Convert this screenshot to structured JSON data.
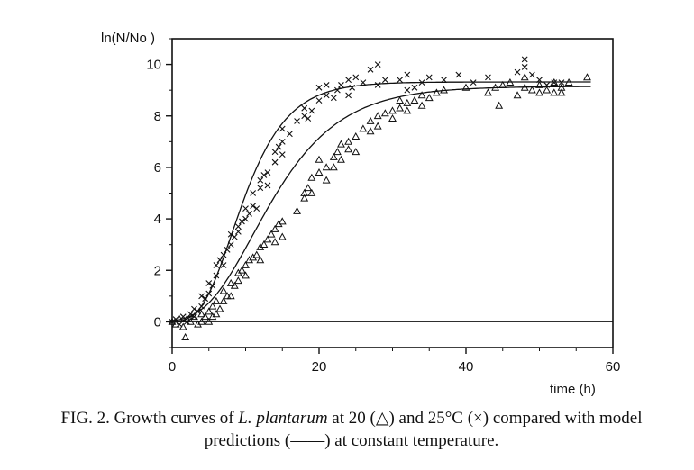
{
  "chart_data": {
    "type": "scatter",
    "xlabel": "time (h)",
    "ylabel": "ln(N/No )",
    "xlim": [
      0,
      60
    ],
    "ylim": [
      -1,
      11
    ],
    "xticks": [
      0,
      20,
      40,
      60
    ],
    "yticks": [
      0,
      2,
      4,
      6,
      8,
      10
    ],
    "grid": false,
    "series": [
      {
        "name": "20°C",
        "marker": "triangle",
        "points": [
          [
            0,
            0
          ],
          [
            0.5,
            -0.1
          ],
          [
            1,
            0.1
          ],
          [
            1.5,
            -0.2
          ],
          [
            1.8,
            -0.6
          ],
          [
            2,
            0.1
          ],
          [
            2.5,
            0
          ],
          [
            3,
            0.2
          ],
          [
            3.5,
            -0.1
          ],
          [
            4,
            0.3
          ],
          [
            4,
            0
          ],
          [
            4.5,
            0.2
          ],
          [
            5,
            0.4
          ],
          [
            5,
            0
          ],
          [
            5.5,
            0.6
          ],
          [
            5.5,
            0.2
          ],
          [
            6,
            0.8
          ],
          [
            6,
            0.3
          ],
          [
            6.5,
            0.5
          ],
          [
            7,
            1.2
          ],
          [
            7,
            0.8
          ],
          [
            7.5,
            1.0
          ],
          [
            8,
            1.5
          ],
          [
            8,
            1.0
          ],
          [
            8.5,
            1.4
          ],
          [
            9,
            1.6
          ],
          [
            9,
            1.9
          ],
          [
            9.5,
            2.0
          ],
          [
            10,
            1.8
          ],
          [
            10,
            2.2
          ],
          [
            10.5,
            2.4
          ],
          [
            11,
            2.5
          ],
          [
            11.5,
            2.6
          ],
          [
            12,
            2.9
          ],
          [
            12,
            2.4
          ],
          [
            12.5,
            3.0
          ],
          [
            13,
            3.2
          ],
          [
            13.5,
            3.4
          ],
          [
            14,
            3.6
          ],
          [
            14,
            3.1
          ],
          [
            14.5,
            3.8
          ],
          [
            15,
            3.9
          ],
          [
            15,
            3.3
          ],
          [
            17,
            4.3
          ],
          [
            18,
            4.8
          ],
          [
            18,
            5.0
          ],
          [
            18.5,
            5.2
          ],
          [
            19,
            5.6
          ],
          [
            19,
            5.0
          ],
          [
            20,
            5.8
          ],
          [
            20,
            6.3
          ],
          [
            21,
            6.0
          ],
          [
            21,
            5.5
          ],
          [
            22,
            6.4
          ],
          [
            22,
            6.0
          ],
          [
            22.5,
            6.6
          ],
          [
            23,
            6.9
          ],
          [
            23,
            6.3
          ],
          [
            24,
            6.7
          ],
          [
            24,
            7.0
          ],
          [
            25,
            7.2
          ],
          [
            25,
            6.6
          ],
          [
            26,
            7.5
          ],
          [
            27,
            7.4
          ],
          [
            27,
            7.8
          ],
          [
            28,
            7.6
          ],
          [
            28,
            8.0
          ],
          [
            29,
            8.1
          ],
          [
            30,
            8.2
          ],
          [
            30,
            7.9
          ],
          [
            31,
            8.3
          ],
          [
            31,
            8.6
          ],
          [
            32,
            8.5
          ],
          [
            32,
            8.2
          ],
          [
            33,
            8.6
          ],
          [
            34,
            8.4
          ],
          [
            34,
            8.8
          ],
          [
            35,
            8.7
          ],
          [
            36,
            8.9
          ],
          [
            37,
            9.0
          ],
          [
            40,
            9.1
          ],
          [
            43,
            8.9
          ],
          [
            44,
            9.1
          ],
          [
            44.5,
            8.4
          ],
          [
            45,
            9.2
          ],
          [
            46,
            9.3
          ],
          [
            47,
            8.8
          ],
          [
            48,
            9.1
          ],
          [
            48,
            9.5
          ],
          [
            49,
            9.0
          ],
          [
            50,
            9.2
          ],
          [
            50,
            8.9
          ],
          [
            51,
            9.0
          ],
          [
            52,
            9.3
          ],
          [
            52,
            8.9
          ],
          [
            53,
            9.1
          ],
          [
            53,
            8.9
          ],
          [
            54,
            9.3
          ],
          [
            56.5,
            9.5
          ]
        ]
      },
      {
        "name": "25°C",
        "marker": "cross",
        "points": [
          [
            0,
            0
          ],
          [
            0.5,
            0.1
          ],
          [
            1,
            -0.1
          ],
          [
            1.5,
            0.2
          ],
          [
            2,
            0
          ],
          [
            2.5,
            0.3
          ],
          [
            3,
            0.5
          ],
          [
            3,
            0.2
          ],
          [
            3.5,
            0.4
          ],
          [
            4,
            0.6
          ],
          [
            4,
            1.0
          ],
          [
            4.5,
            0.9
          ],
          [
            5,
            1.1
          ],
          [
            5,
            1.5
          ],
          [
            5.5,
            1.4
          ],
          [
            6,
            1.8
          ],
          [
            6,
            2.2
          ],
          [
            6.5,
            2.4
          ],
          [
            7,
            2.6
          ],
          [
            7,
            2.2
          ],
          [
            7.5,
            2.8
          ],
          [
            8,
            3.0
          ],
          [
            8,
            3.4
          ],
          [
            8.5,
            3.3
          ],
          [
            9,
            3.5
          ],
          [
            9,
            3.7
          ],
          [
            9.5,
            3.9
          ],
          [
            10,
            4.0
          ],
          [
            10,
            4.4
          ],
          [
            10.5,
            4.2
          ],
          [
            11,
            4.5
          ],
          [
            11,
            5.0
          ],
          [
            11.5,
            4.4
          ],
          [
            12,
            5.2
          ],
          [
            12,
            5.5
          ],
          [
            12.5,
            5.7
          ],
          [
            13,
            5.8
          ],
          [
            13,
            5.3
          ],
          [
            14,
            6.2
          ],
          [
            14,
            6.6
          ],
          [
            14.5,
            6.8
          ],
          [
            15,
            6.5
          ],
          [
            15,
            7.0
          ],
          [
            15,
            7.5
          ],
          [
            16,
            7.3
          ],
          [
            17,
            7.8
          ],
          [
            18,
            8.0
          ],
          [
            18,
            8.3
          ],
          [
            18.5,
            7.9
          ],
          [
            19,
            8.2
          ],
          [
            20,
            8.6
          ],
          [
            20,
            9.1
          ],
          [
            21,
            8.8
          ],
          [
            21,
            9.2
          ],
          [
            22,
            8.7
          ],
          [
            22.5,
            9.0
          ],
          [
            23,
            9.2
          ],
          [
            24,
            9.4
          ],
          [
            24,
            8.8
          ],
          [
            24.5,
            9.1
          ],
          [
            25,
            9.5
          ],
          [
            26,
            9.3
          ],
          [
            27,
            9.8
          ],
          [
            28,
            9.2
          ],
          [
            28,
            10.0
          ],
          [
            29,
            9.4
          ],
          [
            31,
            9.4
          ],
          [
            32,
            9.6
          ],
          [
            32,
            9.0
          ],
          [
            33,
            9.1
          ],
          [
            34,
            9.3
          ],
          [
            35,
            9.5
          ],
          [
            37,
            9.4
          ],
          [
            39,
            9.6
          ],
          [
            41,
            9.3
          ],
          [
            43,
            9.5
          ],
          [
            47,
            9.7
          ],
          [
            48,
            10.2
          ],
          [
            48,
            9.9
          ],
          [
            49,
            9.6
          ],
          [
            50,
            9.4
          ],
          [
            51,
            9.2
          ],
          [
            52,
            9.3
          ],
          [
            53,
            9.3
          ]
        ]
      }
    ],
    "model_curves": [
      {
        "series": "20°C",
        "A": 9.15,
        "mu": 0.52,
        "lambda": 4.5,
        "x_end": 57
      },
      {
        "series": "25°C",
        "A": 9.32,
        "mu": 0.83,
        "lambda": 4.0,
        "x_end": 57
      }
    ]
  },
  "caption": {
    "prefix": "FIG. 2. Growth curves of ",
    "species": "L. plantarum",
    "suffix": " at 20 (△) and 25°C (×) compared with model predictions (——) at constant temperature."
  },
  "colors": {
    "ink": "#111111",
    "background": "#ffffff"
  }
}
